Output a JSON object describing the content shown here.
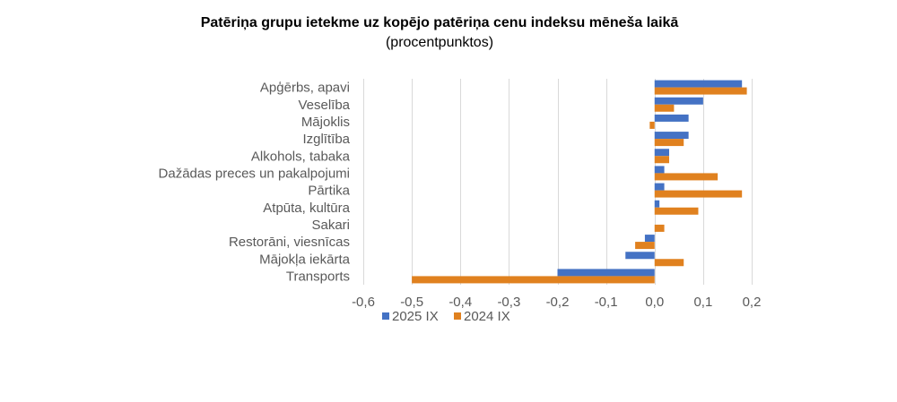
{
  "chart_data": {
    "type": "bar",
    "orientation": "horizontal",
    "title": "Patēriņa grupu ietekme uz kopējo patēriņa cenu indeksu mēneša laikā",
    "subtitle": "(procentpunktos)",
    "categories": [
      "Apģērbs, apavi",
      "Veselība",
      "Mājoklis",
      "Izglītība",
      "Alkohols, tabaka",
      "Dažādas preces un pakalpojumi",
      "Pārtika",
      "Atpūta, kultūra",
      "Sakari",
      "Restorāni, viesnīcas",
      "Mājokļa iekārta",
      "Transports"
    ],
    "series": [
      {
        "name": "2025 IX",
        "color": "#4472c4",
        "values": [
          0.18,
          0.1,
          0.07,
          0.07,
          0.03,
          0.02,
          0.02,
          0.01,
          0.0,
          -0.02,
          -0.06,
          -0.2
        ]
      },
      {
        "name": "2024 IX",
        "color": "#e0811f",
        "values": [
          0.19,
          0.04,
          -0.01,
          0.06,
          0.03,
          0.13,
          0.18,
          0.09,
          0.02,
          -0.04,
          0.06,
          -0.5
        ]
      }
    ],
    "xlim": [
      -0.6,
      0.2
    ],
    "xticks": [
      -0.6,
      -0.5,
      -0.4,
      -0.3,
      -0.2,
      -0.1,
      0.0,
      0.1,
      0.2
    ],
    "xtick_labels": [
      "-0,6",
      "-0,5",
      "-0,4",
      "-0,3",
      "-0,2",
      "-0,1",
      "0,0",
      "0,1",
      "0,2"
    ],
    "grid": true,
    "legend": "bottom"
  }
}
